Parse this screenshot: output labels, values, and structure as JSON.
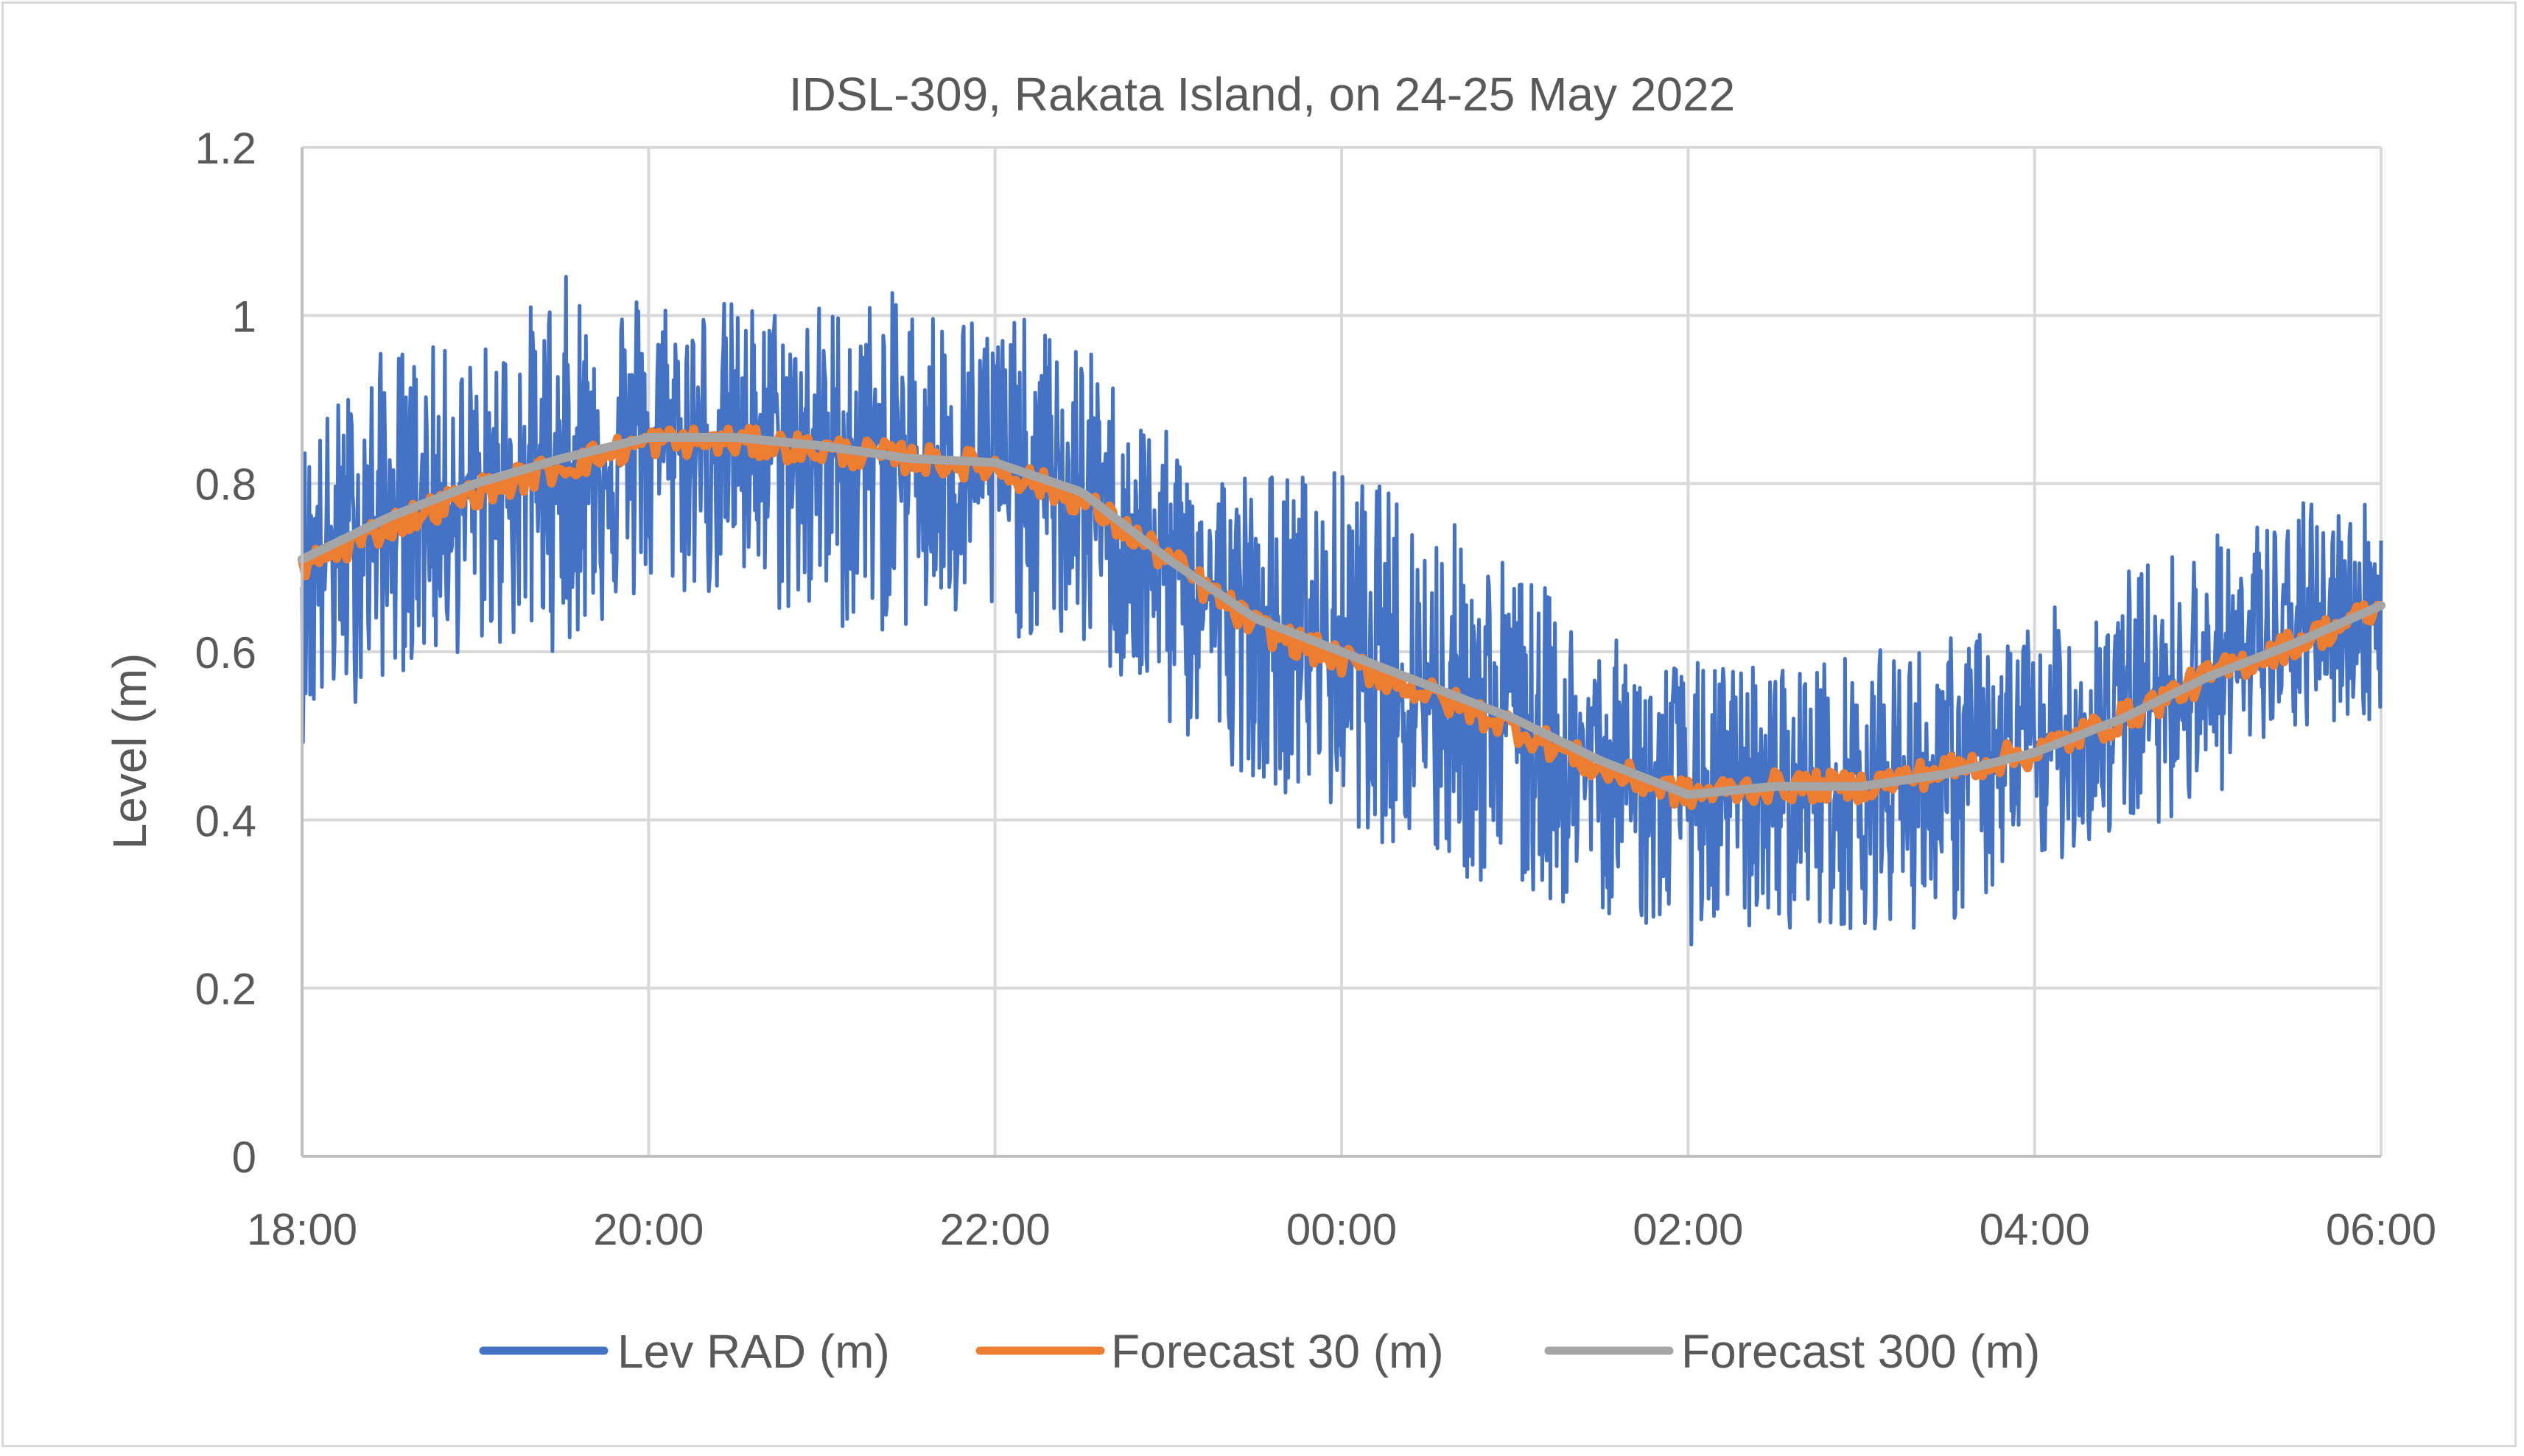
{
  "chart_data": {
    "type": "line",
    "title": "IDSL-309, Rakata Island, on 24-25 May 2022",
    "xlabel": "",
    "ylabel": "Level (m)",
    "x_tick_labels": [
      "18:00",
      "20:00",
      "22:00",
      "00:00",
      "02:00",
      "04:00",
      "06:00"
    ],
    "x_range_hours": [
      0,
      12
    ],
    "ylim": [
      0,
      1.2
    ],
    "y_ticks": [
      0,
      0.2,
      0.4,
      0.6,
      0.8,
      1,
      1.2
    ],
    "y_tick_labels": [
      "0",
      "0.2",
      "0.4",
      "0.6",
      "0.8",
      "1",
      "1.2"
    ],
    "grid": true,
    "legend_position": "bottom",
    "x_hours": [
      0,
      0.5,
      1,
      1.5,
      2,
      2.5,
      3,
      3.5,
      4,
      4.5,
      5,
      5.5,
      6,
      6.5,
      7,
      7.5,
      8,
      8.5,
      9,
      9.5,
      10,
      10.5,
      11,
      11.5,
      12
    ],
    "series": [
      {
        "name": "Lev RAD (m)",
        "color": "#4472c4",
        "style": "noisy-band",
        "center": [
          0.71,
          0.76,
          0.79,
          0.82,
          0.85,
          0.85,
          0.84,
          0.83,
          0.82,
          0.78,
          0.7,
          0.63,
          0.6,
          0.55,
          0.51,
          0.46,
          0.43,
          0.44,
          0.44,
          0.46,
          0.48,
          0.53,
          0.58,
          0.61,
          0.65
        ],
        "band_low": [
          0.49,
          0.57,
          0.6,
          0.6,
          0.66,
          0.66,
          0.62,
          0.62,
          0.62,
          0.6,
          0.5,
          0.45,
          0.4,
          0.34,
          0.3,
          0.29,
          0.25,
          0.27,
          0.27,
          0.27,
          0.34,
          0.38,
          0.42,
          0.5,
          0.52
        ],
        "band_high": [
          0.86,
          0.97,
          0.96,
          1.05,
          1.04,
          1.02,
          1.02,
          1.03,
          1.01,
          0.97,
          0.86,
          0.82,
          0.82,
          0.78,
          0.71,
          0.62,
          0.59,
          0.59,
          0.6,
          0.62,
          0.64,
          0.7,
          0.74,
          0.78,
          0.79
        ]
      },
      {
        "name": "Forecast 30 (m)",
        "color": "#ed7d31",
        "values": [
          0.7,
          0.75,
          0.79,
          0.82,
          0.85,
          0.85,
          0.84,
          0.83,
          0.82,
          0.78,
          0.71,
          0.63,
          0.59,
          0.55,
          0.51,
          0.46,
          0.43,
          0.44,
          0.44,
          0.46,
          0.48,
          0.52,
          0.57,
          0.61,
          0.65
        ]
      },
      {
        "name": "Forecast 300 (m)",
        "color": "#a5a5a5",
        "values": [
          0.71,
          0.76,
          0.8,
          0.83,
          0.855,
          0.855,
          0.845,
          0.83,
          0.825,
          0.79,
          0.71,
          0.64,
          0.6,
          0.56,
          0.52,
          0.47,
          0.43,
          0.44,
          0.44,
          0.455,
          0.48,
          0.52,
          0.57,
          0.61,
          0.655
        ]
      }
    ]
  },
  "colors": {
    "axis": "#bfbfbf",
    "grid": "#d9d9d9",
    "text": "#595959"
  }
}
